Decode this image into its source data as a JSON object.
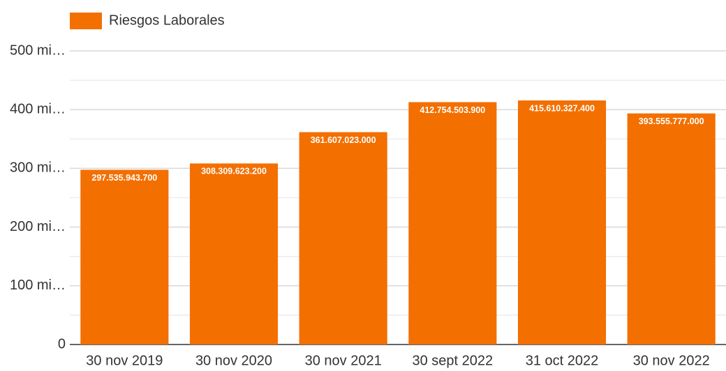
{
  "chart_data": {
    "type": "bar",
    "legend": "top-left",
    "series": [
      {
        "name": "Riesgos Laborales",
        "color": "#f36f00",
        "values": [
          297535943700,
          308309623200,
          361607023000,
          412754503900,
          415610327400,
          393555777000
        ],
        "value_labels": [
          "297.535.943.700",
          "308.309.623.200",
          "361.607.023.000",
          "412.754.503.900",
          "415.610.327.400",
          "393.555.777.000"
        ]
      }
    ],
    "categories": [
      "30 nov 2019",
      "30 nov 2020",
      "30 nov 2021",
      "30 sept 2022",
      "31 oct 2022",
      "30 nov 2022"
    ],
    "ylim": [
      0,
      500000000000
    ],
    "yticks": [
      0,
      {
        "value": 100000000000,
        "label": "100 mi…"
      },
      {
        "value": 200000000000,
        "label": "200 mi…"
      },
      {
        "value": 300000000000,
        "label": "300 mi…"
      },
      {
        "value": 400000000000,
        "label": "400 mi…"
      },
      {
        "value": 500000000000,
        "label": "500 mi…"
      }
    ],
    "minor_yticks": [
      50000000000,
      150000000000,
      250000000000,
      350000000000,
      450000000000
    ],
    "grid": true
  }
}
